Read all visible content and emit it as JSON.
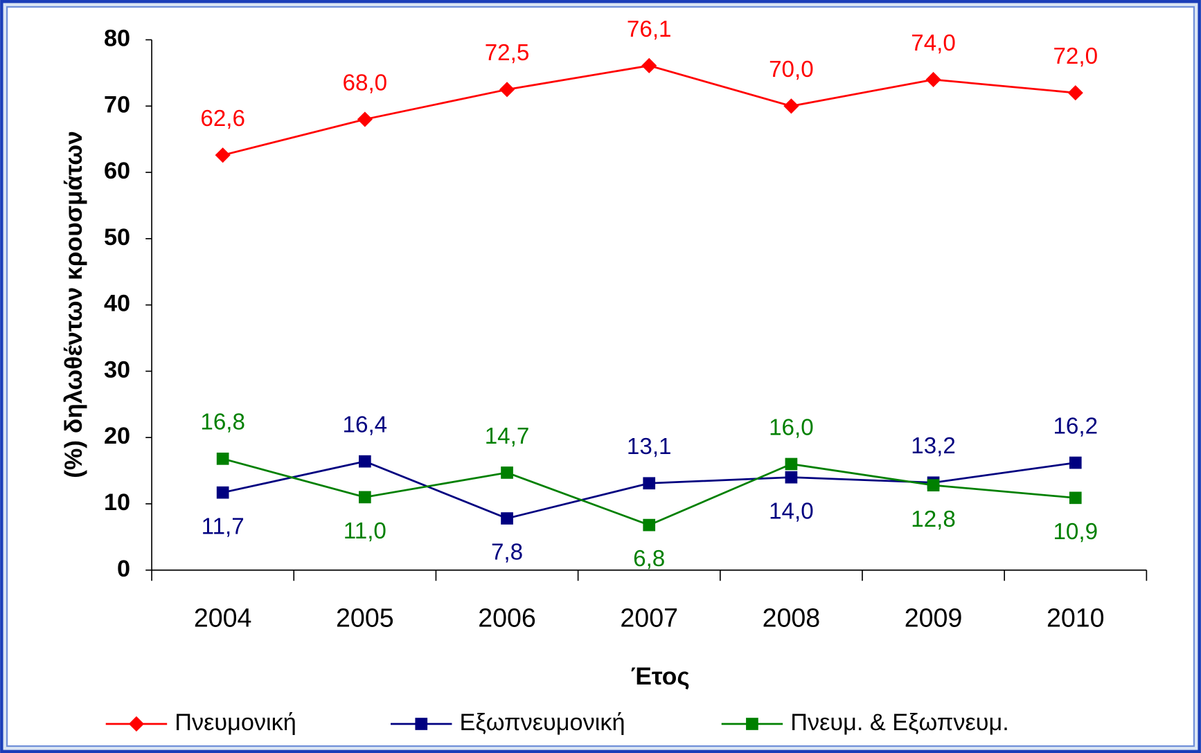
{
  "chart_data": {
    "type": "line",
    "y_label": "(%) δηλωθέντων κρουσμάτων",
    "x_label": "Έτος",
    "categories": [
      "2004",
      "2005",
      "2006",
      "2007",
      "2008",
      "2009",
      "2010"
    ],
    "series": [
      {
        "name": "Πνευμονική",
        "color": "#ff0000",
        "marker": "diamond",
        "values": [
          62.6,
          68.0,
          72.5,
          76.1,
          70.0,
          74.0,
          72.0
        ],
        "value_labels": [
          "62,6",
          "68,0",
          "72,5",
          "76,1",
          "70,0",
          "74,0",
          "72,0"
        ]
      },
      {
        "name": "Εξωπνευμονική",
        "color": "#000080",
        "marker": "square",
        "values": [
          11.7,
          16.4,
          7.8,
          13.1,
          14.0,
          13.2,
          16.2
        ],
        "value_labels": [
          "11,7",
          "16,4",
          "7,8",
          "13,1",
          "14,0",
          "13,2",
          "16,2"
        ]
      },
      {
        "name": "Πνευμ. & Εξωπνευμ.",
        "color": "#008000",
        "marker": "square",
        "values": [
          16.8,
          11.0,
          14.7,
          6.8,
          16.0,
          12.8,
          10.9
        ],
        "value_labels": [
          "16,8",
          "11,0",
          "14,7",
          "6,8",
          "16,0",
          "12,8",
          "10,9"
        ]
      }
    ],
    "ylim": [
      0,
      80
    ],
    "yticks": [
      0,
      10,
      20,
      30,
      40,
      50,
      60,
      70,
      80
    ],
    "grid": false,
    "legend": "bottom"
  }
}
